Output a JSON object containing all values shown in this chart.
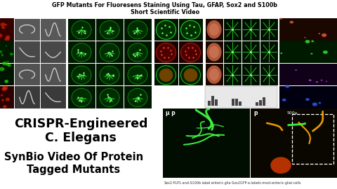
{
  "title_line1": "GFP Mutants For Fluoresens Staining Using Tau, GFAP, Sox2 and S100b",
  "title_line2": "Short Scientific Video",
  "text_main_line1": "CRISPR-Engineered",
  "text_main_line2": "C. Elegans",
  "text_sub_line1": "SynBio Video Of Protein",
  "text_sub_line2": "Tagged Mutants",
  "caption": "Sox2·PLP1·and·S100b·label·enteric·glia·Sox2GFP·a·labels·most·enteric·glial·cells",
  "bg_color": "#ffffff",
  "title_color": "#000000",
  "main_text_color": "#000000",
  "figsize": [
    4.8,
    2.7
  ],
  "dpi": 100
}
